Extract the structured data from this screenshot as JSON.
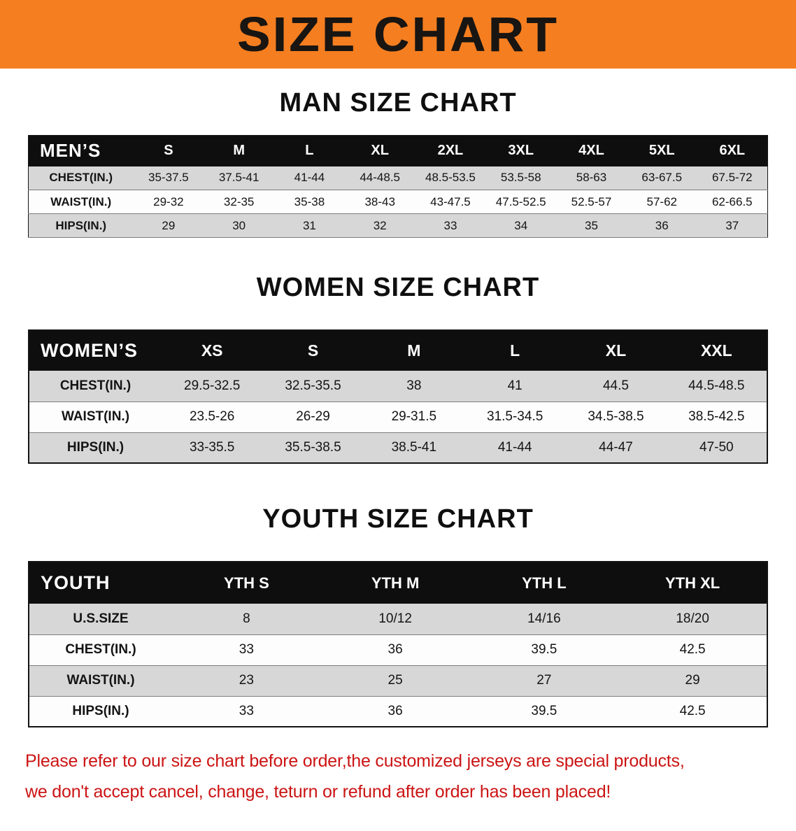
{
  "banner": {
    "title": "SIZE CHART",
    "background": "#f57e20",
    "text_color": "#181512"
  },
  "colors": {
    "table_header_bg": "#0e0e0e",
    "table_header_text": "#ffffff",
    "shaded_row_bg": "#d7d7d7",
    "disclaimer_text": "#cc1414"
  },
  "chart_data": [
    {
      "type": "table",
      "title": "MAN SIZE CHART",
      "header_label": "MEN’S",
      "columns": [
        "S",
        "M",
        "L",
        "XL",
        "2XL",
        "3XL",
        "4XL",
        "5XL",
        "6XL"
      ],
      "rows": [
        {
          "label": "CHEST(IN.)",
          "values": [
            "35-37.5",
            "37.5-41",
            "41-44",
            "44-48.5",
            "48.5-53.5",
            "53.5-58",
            "58-63",
            "63-67.5",
            "67.5-72"
          ]
        },
        {
          "label": "WAIST(IN.)",
          "values": [
            "29-32",
            "32-35",
            "35-38",
            "38-43",
            "43-47.5",
            "47.5-52.5",
            "52.5-57",
            "57-62",
            "62-66.5"
          ]
        },
        {
          "label": "HIPS(IN.)",
          "values": [
            "29",
            "30",
            "31",
            "32",
            "33",
            "34",
            "35",
            "36",
            "37"
          ]
        }
      ]
    },
    {
      "type": "table",
      "title": "WOMEN SIZE CHART",
      "header_label": "WOMEN’S",
      "columns": [
        "XS",
        "S",
        "M",
        "L",
        "XL",
        "XXL"
      ],
      "rows": [
        {
          "label": "CHEST(IN.)",
          "values": [
            "29.5-32.5",
            "32.5-35.5",
            "38",
            "41",
            "44.5",
            "44.5-48.5"
          ]
        },
        {
          "label": "WAIST(IN.)",
          "values": [
            "23.5-26",
            "26-29",
            "29-31.5",
            "31.5-34.5",
            "34.5-38.5",
            "38.5-42.5"
          ]
        },
        {
          "label": "HIPS(IN.)",
          "values": [
            "33-35.5",
            "35.5-38.5",
            "38.5-41",
            "41-44",
            "44-47",
            "47-50"
          ]
        }
      ]
    },
    {
      "type": "table",
      "title": "YOUTH SIZE CHART",
      "header_label": "YOUTH",
      "columns": [
        "YTH S",
        "YTH M",
        "YTH L",
        "YTH XL"
      ],
      "rows": [
        {
          "label": "U.S.SIZE",
          "values": [
            "8",
            "10/12",
            "14/16",
            "18/20"
          ]
        },
        {
          "label": "CHEST(IN.)",
          "values": [
            "33",
            "36",
            "39.5",
            "42.5"
          ]
        },
        {
          "label": "WAIST(IN.)",
          "values": [
            "23",
            "25",
            "27",
            "29"
          ]
        },
        {
          "label": "HIPS(IN.)",
          "values": [
            "33",
            "36",
            "39.5",
            "42.5"
          ]
        }
      ]
    }
  ],
  "disclaimer": {
    "lines": [
      "Please refer to our size chart before order,the customized jerseys are special products,",
      "we don't accept cancel, change, teturn or refund after order has been placed!"
    ]
  }
}
